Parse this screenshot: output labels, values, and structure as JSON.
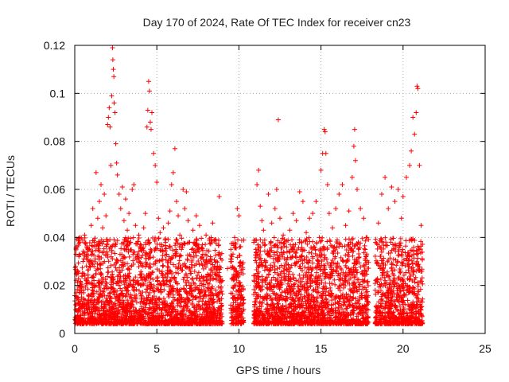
{
  "chart_data": {
    "type": "scatter",
    "title": "Day 170 of 2024, Rate Of TEC Index for receiver cn23",
    "xlabel": "GPS time / hours",
    "ylabel": "ROTI / TECUs",
    "xlim": [
      0,
      25
    ],
    "ylim": [
      0,
      0.12
    ],
    "x_ticks": [
      "0",
      "5",
      "10",
      "15",
      "20",
      "25"
    ],
    "y_ticks": [
      "0",
      "0.02",
      "0.04",
      "0.06",
      "0.08",
      "0.1",
      "0.12"
    ],
    "x_tick_values": [
      0,
      5,
      10,
      15,
      20,
      25
    ],
    "y_tick_values": [
      0,
      0.02,
      0.04,
      0.06,
      0.08,
      0.1,
      0.12
    ],
    "grid": true,
    "marker": "plus",
    "series_color": "#ff0000",
    "series": [
      {
        "points": [
          [
            0.1,
            0.012
          ],
          [
            0.2,
            0.025
          ],
          [
            0.3,
            0.033
          ],
          [
            0.4,
            0.018
          ],
          [
            0.5,
            0.03
          ],
          [
            0.6,
            0.041
          ],
          [
            0.7,
            0.022
          ],
          [
            0.8,
            0.035
          ],
          [
            0.9,
            0.028
          ],
          [
            1.0,
            0.045
          ],
          [
            1.1,
            0.052
          ],
          [
            1.2,
            0.038
          ],
          [
            1.3,
            0.067
          ],
          [
            1.4,
            0.048
          ],
          [
            1.5,
            0.055
          ],
          [
            1.6,
            0.062
          ],
          [
            1.7,
            0.044
          ],
          [
            1.8,
            0.058
          ],
          [
            1.9,
            0.049
          ],
          [
            2.0,
            0.087
          ],
          [
            2.05,
            0.09
          ],
          [
            2.1,
            0.094
          ],
          [
            2.15,
            0.086
          ],
          [
            2.2,
            0.07
          ],
          [
            2.25,
            0.099
          ],
          [
            2.3,
            0.119
          ],
          [
            2.32,
            0.114
          ],
          [
            2.35,
            0.11
          ],
          [
            2.38,
            0.107
          ],
          [
            2.4,
            0.096
          ],
          [
            2.45,
            0.092
          ],
          [
            2.5,
            0.079
          ],
          [
            2.55,
            0.071
          ],
          [
            2.6,
            0.066
          ],
          [
            2.7,
            0.058
          ],
          [
            2.8,
            0.052
          ],
          [
            2.9,
            0.061
          ],
          [
            3.0,
            0.047
          ],
          [
            3.1,
            0.056
          ],
          [
            3.2,
            0.043
          ],
          [
            3.3,
            0.05
          ],
          [
            3.4,
            0.038
          ],
          [
            3.5,
            0.06
          ],
          [
            3.6,
            0.062
          ],
          [
            3.7,
            0.045
          ],
          [
            3.8,
            0.032
          ],
          [
            3.9,
            0.041
          ],
          [
            4.0,
            0.037
          ],
          [
            4.1,
            0.029
          ],
          [
            4.2,
            0.044
          ],
          [
            4.3,
            0.05
          ],
          [
            4.4,
            0.086
          ],
          [
            4.45,
            0.093
          ],
          [
            4.5,
            0.105
          ],
          [
            4.55,
            0.101
          ],
          [
            4.6,
            0.088
          ],
          [
            4.65,
            0.085
          ],
          [
            4.7,
            0.092
          ],
          [
            4.8,
            0.075
          ],
          [
            4.9,
            0.07
          ],
          [
            5.0,
            0.063
          ],
          [
            5.1,
            0.048
          ],
          [
            5.2,
            0.042
          ],
          [
            5.3,
            0.037
          ],
          [
            5.4,
            0.044
          ],
          [
            5.5,
            0.039
          ],
          [
            5.6,
            0.033
          ],
          [
            5.7,
            0.046
          ],
          [
            5.8,
            0.051
          ],
          [
            5.9,
            0.062
          ],
          [
            6.0,
            0.067
          ],
          [
            6.1,
            0.077
          ],
          [
            6.2,
            0.055
          ],
          [
            6.3,
            0.049
          ],
          [
            6.4,
            0.041
          ],
          [
            6.5,
            0.035
          ],
          [
            6.6,
            0.06
          ],
          [
            6.7,
            0.052
          ],
          [
            6.8,
            0.059
          ],
          [
            6.9,
            0.047
          ],
          [
            7.0,
            0.038
          ],
          [
            7.2,
            0.043
          ],
          [
            7.4,
            0.049
          ],
          [
            7.5,
            0.036
          ],
          [
            7.6,
            0.045
          ],
          [
            7.8,
            0.033
          ],
          [
            8.0,
            0.041
          ],
          [
            8.2,
            0.03
          ],
          [
            8.4,
            0.046
          ],
          [
            8.6,
            0.039
          ],
          [
            8.8,
            0.057
          ],
          [
            9.0,
            0.022
          ],
          [
            9.3,
            0.027
          ],
          [
            9.5,
            0.031
          ],
          [
            9.7,
            0.024
          ],
          [
            9.9,
            0.052
          ],
          [
            10.0,
            0.049
          ],
          [
            10.1,
            0.015
          ],
          [
            11.0,
            0.039
          ],
          [
            11.1,
            0.062
          ],
          [
            11.2,
            0.068
          ],
          [
            11.3,
            0.053
          ],
          [
            11.4,
            0.047
          ],
          [
            11.5,
            0.043
          ],
          [
            11.6,
            0.037
          ],
          [
            11.8,
            0.058
          ],
          [
            12.0,
            0.046
          ],
          [
            12.2,
            0.052
          ],
          [
            12.3,
            0.06
          ],
          [
            12.4,
            0.089
          ],
          [
            12.5,
            0.048
          ],
          [
            12.7,
            0.041
          ],
          [
            12.9,
            0.036
          ],
          [
            13.1,
            0.043
          ],
          [
            13.3,
            0.05
          ],
          [
            13.5,
            0.047
          ],
          [
            13.7,
            0.059
          ],
          [
            13.9,
            0.055
          ],
          [
            14.1,
            0.042
          ],
          [
            14.3,
            0.048
          ],
          [
            14.5,
            0.05
          ],
          [
            14.7,
            0.055
          ],
          [
            14.9,
            0.04
          ],
          [
            15.0,
            0.068
          ],
          [
            15.1,
            0.075
          ],
          [
            15.2,
            0.085
          ],
          [
            15.25,
            0.084
          ],
          [
            15.3,
            0.075
          ],
          [
            15.4,
            0.062
          ],
          [
            15.5,
            0.05
          ],
          [
            15.7,
            0.044
          ],
          [
            15.9,
            0.052
          ],
          [
            16.1,
            0.058
          ],
          [
            16.3,
            0.062
          ],
          [
            16.5,
            0.045
          ],
          [
            16.7,
            0.051
          ],
          [
            16.9,
            0.065
          ],
          [
            17.0,
            0.078
          ],
          [
            17.05,
            0.085
          ],
          [
            17.1,
            0.072
          ],
          [
            17.2,
            0.06
          ],
          [
            17.4,
            0.052
          ],
          [
            17.6,
            0.048
          ],
          [
            17.8,
            0.04
          ],
          [
            18.5,
            0.046
          ],
          [
            18.7,
            0.058
          ],
          [
            18.9,
            0.065
          ],
          [
            19.1,
            0.052
          ],
          [
            19.3,
            0.061
          ],
          [
            19.5,
            0.055
          ],
          [
            19.7,
            0.06
          ],
          [
            19.9,
            0.048
          ],
          [
            20.0,
            0.057
          ],
          [
            20.2,
            0.065
          ],
          [
            20.4,
            0.07
          ],
          [
            20.5,
            0.076
          ],
          [
            20.6,
            0.09
          ],
          [
            20.7,
            0.083
          ],
          [
            20.8,
            0.092
          ],
          [
            20.85,
            0.103
          ],
          [
            20.9,
            0.102
          ],
          [
            21.0,
            0.07
          ],
          [
            21.1,
            0.045
          ]
        ]
      }
    ]
  }
}
